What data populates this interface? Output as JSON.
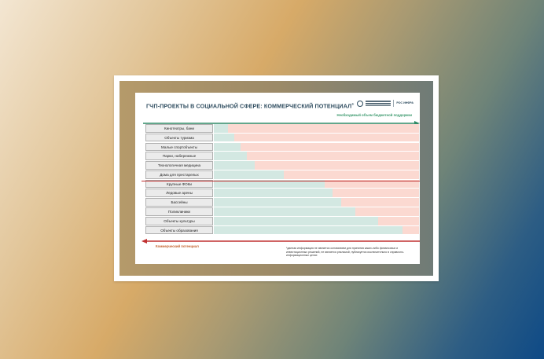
{
  "slide": {
    "title": "ГЧП-ПРОЕКТЫ В СОЦИАЛЬНОЙ СФЕРЕ: КОММЕРЧЕСКИЙ ПОТЕНЦИАЛ",
    "title_mark": "®",
    "top_axis_label": "Необходимый объем бюджетной поддержки",
    "bottom_axis_label": "Коммерческий потенциал",
    "footnote": "*данная информация не является основанием для принятия каких-либо финансовых и инвестиционных решений, не является рекламой, публикуется исключительно в справочно-информационных целях",
    "logo_text": "РОС ИНФРА"
  },
  "colors": {
    "bar_fill": "#d3e8e2",
    "bar_background": "#fbd9d1",
    "top_arrow": "#2e8a66",
    "bottom_arrow": "#c03030",
    "divider": "#c03030"
  },
  "chart_data": {
    "type": "bar",
    "orientation": "horizontal",
    "categories": [
      "Кинотеатры, бани",
      "Объекты туризма",
      "Малые спортобъекты",
      "Парки, набережные",
      "Технологичная медицина",
      "Дома для престарелых",
      "Крупные ФОКи",
      "Ледовые арены",
      "Бассейны",
      "Поликлиники",
      "Объекты культуры",
      "Объекты образования"
    ],
    "values": [
      0.07,
      0.1,
      0.13,
      0.16,
      0.2,
      0.34,
      0.54,
      0.58,
      0.62,
      0.69,
      0.8,
      0.92
    ],
    "divider_after_index": 5
  }
}
